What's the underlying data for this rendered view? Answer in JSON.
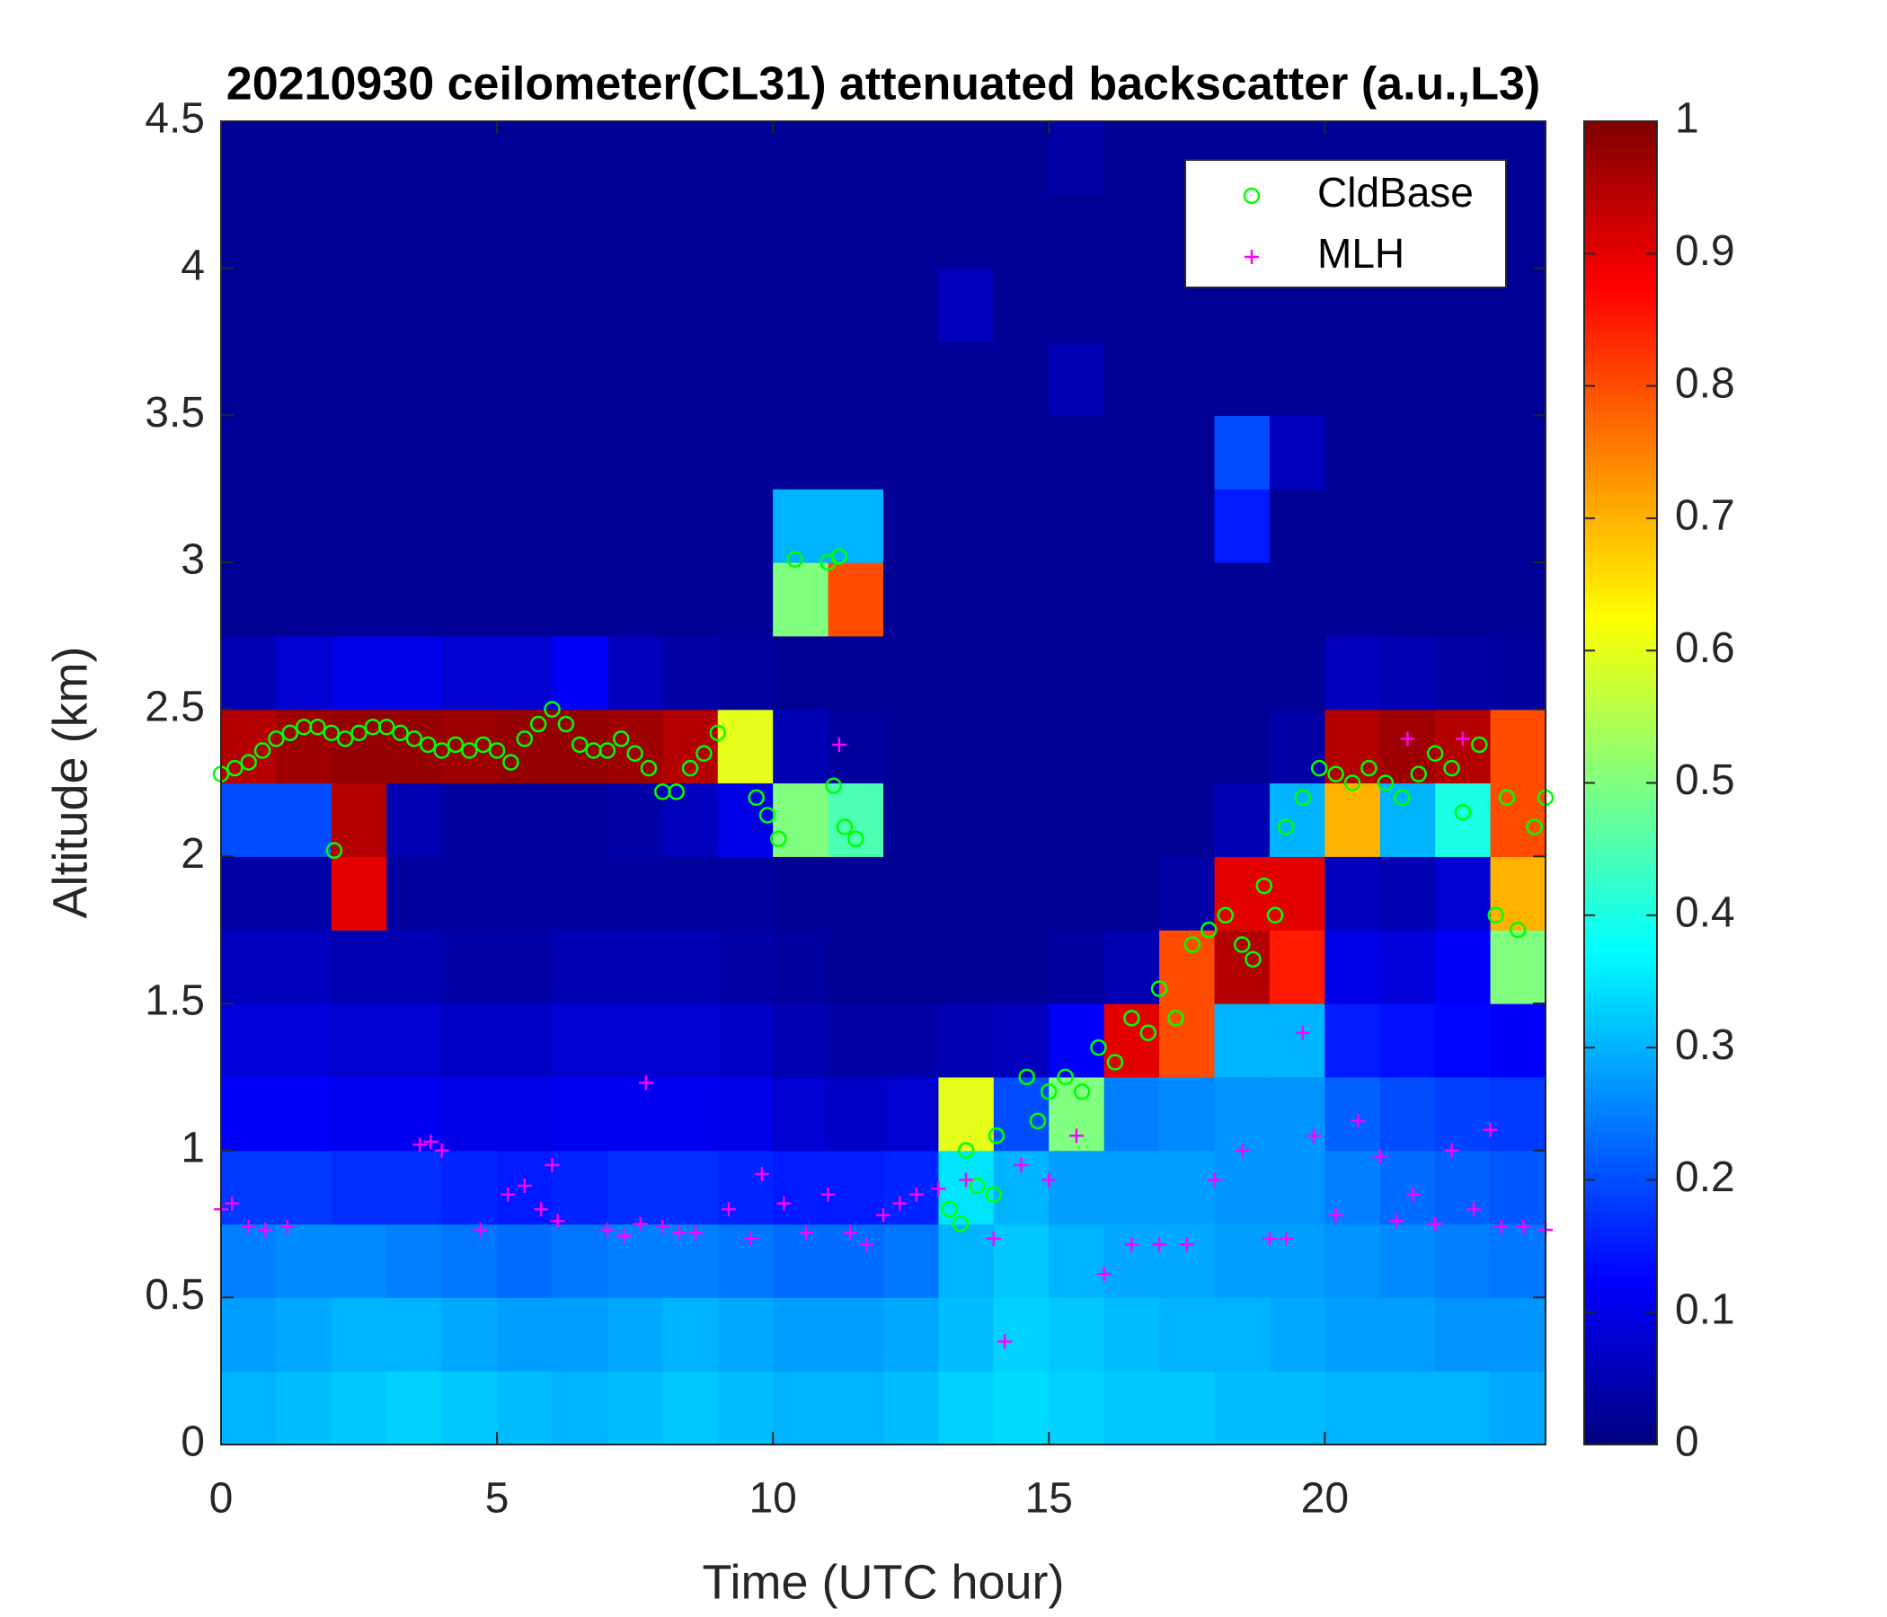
{
  "chart_data": {
    "type": "heatmap",
    "title": "20210930 ceilometer(CL31) attenuated backscatter (a.u.,L3)",
    "x_label": "Time (UTC hour)",
    "y_label": "Altitude (km)",
    "xlim": [
      0,
      24
    ],
    "ylim": [
      0,
      4.5
    ],
    "xticks": [
      0,
      5,
      10,
      15,
      20
    ],
    "yticks": [
      0,
      0.5,
      1,
      1.5,
      2,
      2.5,
      3,
      3.5,
      4,
      4.5
    ],
    "colormap": "jet",
    "clim": [
      0,
      1
    ],
    "cticks": [
      0,
      0.1,
      0.2,
      0.3,
      0.4,
      0.5,
      0.6,
      0.7,
      0.8,
      0.9,
      1
    ],
    "legend_position": "upper right",
    "x_bins": [
      0,
      1,
      2,
      3,
      4,
      5,
      6,
      7,
      8,
      9,
      10,
      11,
      12,
      13,
      14,
      15,
      16,
      17,
      18,
      19,
      20,
      21,
      22,
      23,
      24
    ],
    "y_bins": [
      0,
      0.25,
      0.5,
      0.75,
      1,
      1.25,
      1.5,
      1.75,
      2,
      2.25,
      2.5,
      2.75,
      3,
      3.25,
      3.5,
      3.75,
      4,
      4.25,
      4.5
    ],
    "z": [
      [
        0.3,
        0.31,
        0.32,
        0.33,
        0.32,
        0.31,
        0.3,
        0.31,
        0.32,
        0.31,
        0.3,
        0.3,
        0.31,
        0.33,
        0.34,
        0.33,
        0.32,
        0.32,
        0.31,
        0.31,
        0.3,
        0.3,
        0.3,
        0.29
      ],
      [
        0.28,
        0.29,
        0.3,
        0.3,
        0.29,
        0.28,
        0.28,
        0.29,
        0.3,
        0.29,
        0.28,
        0.28,
        0.29,
        0.31,
        0.33,
        0.32,
        0.31,
        0.3,
        0.3,
        0.29,
        0.28,
        0.28,
        0.27,
        0.27
      ],
      [
        0.25,
        0.26,
        0.26,
        0.25,
        0.24,
        0.23,
        0.24,
        0.25,
        0.25,
        0.24,
        0.23,
        0.23,
        0.24,
        0.3,
        0.32,
        0.3,
        0.29,
        0.29,
        0.28,
        0.28,
        0.27,
        0.26,
        0.25,
        0.24
      ],
      [
        0.18,
        0.18,
        0.17,
        0.17,
        0.16,
        0.15,
        0.16,
        0.17,
        0.17,
        0.16,
        0.15,
        0.15,
        0.16,
        0.35,
        0.3,
        0.28,
        0.28,
        0.28,
        0.27,
        0.27,
        0.25,
        0.23,
        0.22,
        0.21
      ],
      [
        0.12,
        0.12,
        0.11,
        0.11,
        0.1,
        0.1,
        0.11,
        0.11,
        0.11,
        0.1,
        0.08,
        0.07,
        0.08,
        0.6,
        0.2,
        0.5,
        0.25,
        0.26,
        0.27,
        0.27,
        0.22,
        0.2,
        0.19,
        0.18
      ],
      [
        0.09,
        0.09,
        0.08,
        0.08,
        0.07,
        0.07,
        0.08,
        0.08,
        0.08,
        0.07,
        0.05,
        0.04,
        0.04,
        0.05,
        0.06,
        0.12,
        0.9,
        0.8,
        0.3,
        0.3,
        0.15,
        0.14,
        0.13,
        0.12
      ],
      [
        0.06,
        0.06,
        0.05,
        0.05,
        0.04,
        0.04,
        0.05,
        0.05,
        0.05,
        0.04,
        0.03,
        0.02,
        0.02,
        0.02,
        0.02,
        0.03,
        0.05,
        0.8,
        0.95,
        0.85,
        0.1,
        0.09,
        0.12,
        0.5
      ],
      [
        0.04,
        0.04,
        0.9,
        0.03,
        0.03,
        0.03,
        0.03,
        0.03,
        0.03,
        0.03,
        0.02,
        0.02,
        0.02,
        0.02,
        0.02,
        0.02,
        0.02,
        0.04,
        0.9,
        0.9,
        0.06,
        0.05,
        0.08,
        0.7
      ],
      [
        0.2,
        0.2,
        0.95,
        0.05,
        0.03,
        0.03,
        0.03,
        0.04,
        0.06,
        0.1,
        0.5,
        0.45,
        0.02,
        0.02,
        0.02,
        0.02,
        0.02,
        0.02,
        0.05,
        0.3,
        0.7,
        0.3,
        0.4,
        0.8
      ],
      [
        0.95,
        0.97,
        0.98,
        0.98,
        0.97,
        0.98,
        0.98,
        0.97,
        0.95,
        0.6,
        0.05,
        0.03,
        0.02,
        0.02,
        0.02,
        0.02,
        0.02,
        0.02,
        0.02,
        0.04,
        0.95,
        0.97,
        0.95,
        0.8
      ],
      [
        0.05,
        0.08,
        0.1,
        0.1,
        0.08,
        0.08,
        0.12,
        0.06,
        0.04,
        0.03,
        0.02,
        0.02,
        0.02,
        0.02,
        0.02,
        0.02,
        0.02,
        0.02,
        0.02,
        0.02,
        0.06,
        0.05,
        0.04,
        0.03
      ],
      [
        0.02,
        0.02,
        0.02,
        0.02,
        0.02,
        0.02,
        0.02,
        0.02,
        0.02,
        0.02,
        0.5,
        0.8,
        0.02,
        0.02,
        0.02,
        0.02,
        0.02,
        0.02,
        0.02,
        0.02,
        0.02,
        0.02,
        0.02,
        0.02
      ],
      [
        0.02,
        0.02,
        0.02,
        0.02,
        0.02,
        0.02,
        0.02,
        0.02,
        0.02,
        0.02,
        0.3,
        0.3,
        0.02,
        0.02,
        0.02,
        0.02,
        0.02,
        0.02,
        0.15,
        0.02,
        0.02,
        0.02,
        0.02,
        0.02
      ],
      [
        0.02,
        0.02,
        0.02,
        0.02,
        0.02,
        0.02,
        0.02,
        0.02,
        0.02,
        0.02,
        0.02,
        0.02,
        0.02,
        0.02,
        0.02,
        0.02,
        0.02,
        0.02,
        0.2,
        0.06,
        0.02,
        0.02,
        0.02,
        0.02
      ],
      [
        0.02,
        0.02,
        0.02,
        0.02,
        0.02,
        0.02,
        0.02,
        0.02,
        0.02,
        0.02,
        0.02,
        0.02,
        0.02,
        0.02,
        0.02,
        0.05,
        0.02,
        0.02,
        0.02,
        0.02,
        0.02,
        0.02,
        0.02,
        0.02
      ],
      [
        0.02,
        0.02,
        0.02,
        0.02,
        0.02,
        0.02,
        0.02,
        0.02,
        0.02,
        0.02,
        0.02,
        0.02,
        0.02,
        0.06,
        0.02,
        0.02,
        0.02,
        0.02,
        0.02,
        0.02,
        0.02,
        0.02,
        0.02,
        0.02
      ],
      [
        0.02,
        0.02,
        0.02,
        0.02,
        0.02,
        0.02,
        0.02,
        0.02,
        0.02,
        0.02,
        0.02,
        0.02,
        0.02,
        0.02,
        0.02,
        0.02,
        0.02,
        0.02,
        0.02,
        0.02,
        0.02,
        0.02,
        0.02,
        0.02
      ],
      [
        0.02,
        0.02,
        0.02,
        0.02,
        0.02,
        0.02,
        0.02,
        0.02,
        0.02,
        0.02,
        0.02,
        0.02,
        0.02,
        0.02,
        0.02,
        0.04,
        0.02,
        0.02,
        0.02,
        0.02,
        0.02,
        0.02,
        0.02,
        0.02
      ]
    ],
    "series": [
      {
        "name": "CldBase",
        "color": "#00ff00",
        "marker": "o",
        "x": [
          0,
          0.25,
          0.5,
          0.75,
          1,
          1.25,
          1.5,
          1.75,
          2,
          2.25,
          2.5,
          2.75,
          3,
          3.25,
          3.5,
          3.75,
          4,
          4.25,
          4.5,
          4.75,
          5,
          5.25,
          5.5,
          5.75,
          6,
          6.25,
          6.5,
          6.75,
          7,
          7.25,
          7.5,
          7.75,
          8,
          8.25,
          8.5,
          8.75,
          9,
          2.05,
          9.7,
          9.9,
          10.1,
          10.4,
          11.0,
          11.2,
          11.1,
          11.3,
          11.5,
          13.2,
          13.4,
          13.5,
          13.7,
          14.0,
          14.05,
          14.6,
          14.8,
          15,
          15.3,
          15.6,
          15.9,
          16.2,
          16.5,
          16.8,
          17.0,
          17.3,
          17.6,
          17.9,
          18.2,
          18.5,
          18.7,
          18.9,
          19.1,
          19.3,
          19.6,
          19.9,
          20.2,
          20.5,
          20.8,
          21.1,
          21.4,
          21.7,
          22,
          22.3,
          22.5,
          22.8,
          23.1,
          23.3,
          23.5,
          23.8,
          24
        ],
        "values": [
          2.28,
          2.3,
          2.32,
          2.36,
          2.4,
          2.42,
          2.44,
          2.44,
          2.42,
          2.4,
          2.42,
          2.44,
          2.44,
          2.42,
          2.4,
          2.38,
          2.36,
          2.38,
          2.36,
          2.38,
          2.36,
          2.32,
          2.4,
          2.45,
          2.5,
          2.45,
          2.38,
          2.36,
          2.36,
          2.4,
          2.35,
          2.3,
          2.22,
          2.22,
          2.3,
          2.35,
          2.42,
          2.02,
          2.2,
          2.14,
          2.06,
          3.01,
          3.0,
          3.02,
          2.24,
          2.1,
          2.06,
          0.8,
          0.75,
          1.0,
          0.88,
          0.85,
          1.05,
          1.25,
          1.1,
          1.2,
          1.25,
          1.2,
          1.35,
          1.3,
          1.45,
          1.4,
          1.55,
          1.45,
          1.7,
          1.75,
          1.8,
          1.7,
          1.65,
          1.9,
          1.8,
          2.1,
          2.2,
          2.3,
          2.28,
          2.25,
          2.3,
          2.25,
          2.2,
          2.28,
          2.35,
          2.3,
          2.15,
          2.38,
          1.8,
          2.2,
          1.75,
          2.1,
          2.2
        ]
      },
      {
        "name": "MLH",
        "color": "#ff00ff",
        "marker": "+",
        "x": [
          0,
          0.2,
          0.5,
          0.8,
          1.2,
          3.6,
          3.8,
          4.0,
          4.7,
          5.2,
          5.5,
          5.8,
          6.0,
          6.1,
          7.0,
          7.3,
          7.6,
          7.7,
          8.0,
          8.3,
          8.6,
          9.2,
          9.6,
          9.8,
          10.2,
          10.6,
          11.0,
          11.2,
          11.4,
          11.7,
          12.0,
          12.3,
          12.6,
          13.0,
          13.5,
          14.0,
          14.2,
          14.5,
          15.0,
          15.5,
          16.0,
          16.5,
          17.0,
          17.5,
          18.0,
          18.5,
          19.0,
          19.3,
          19.6,
          19.8,
          20.2,
          20.6,
          21.0,
          21.3,
          21.5,
          21.6,
          22.0,
          22.3,
          22.5,
          22.7,
          23.0,
          23.2,
          23.6,
          24
        ],
        "values": [
          0.8,
          0.82,
          0.74,
          0.73,
          0.74,
          1.02,
          1.03,
          1.0,
          0.73,
          0.85,
          0.88,
          0.8,
          0.95,
          0.76,
          0.73,
          0.71,
          0.75,
          1.23,
          0.74,
          0.72,
          0.72,
          0.8,
          0.7,
          0.92,
          0.82,
          0.72,
          0.85,
          2.38,
          0.72,
          0.68,
          0.78,
          0.82,
          0.85,
          0.87,
          0.9,
          0.7,
          0.35,
          0.95,
          0.9,
          1.05,
          0.58,
          0.68,
          0.68,
          0.68,
          0.9,
          1.0,
          0.7,
          0.7,
          1.4,
          1.05,
          0.78,
          1.1,
          0.98,
          0.76,
          2.4,
          0.85,
          0.75,
          1.0,
          2.4,
          0.8,
          1.07,
          0.74,
          0.74,
          0.73
        ]
      }
    ]
  }
}
